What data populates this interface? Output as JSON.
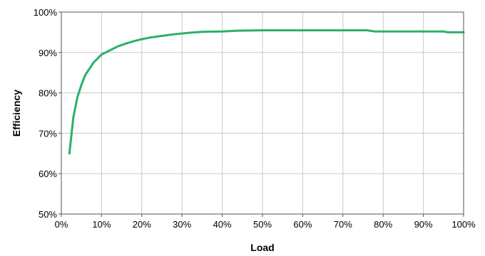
{
  "chart_data": {
    "type": "line",
    "title": "",
    "xlabel": "Load",
    "ylabel": "Efficiency",
    "xlim": [
      0,
      100
    ],
    "ylim": [
      50,
      100
    ],
    "x_ticks": [
      0,
      10,
      20,
      30,
      40,
      50,
      60,
      70,
      80,
      90,
      100
    ],
    "x_tick_labels": [
      "0%",
      "10%",
      "20%",
      "30%",
      "40%",
      "50%",
      "60%",
      "70%",
      "80%",
      "90%",
      "100%"
    ],
    "y_ticks": [
      50,
      60,
      70,
      80,
      90,
      100
    ],
    "y_tick_labels": [
      "50%",
      "60%",
      "70%",
      "80%",
      "90%",
      "100%"
    ],
    "grid": true,
    "legend": "none",
    "series": [
      {
        "color": "#2bb06b",
        "x": [
          2,
          3,
          4,
          5,
          6,
          7,
          8,
          9,
          10,
          12,
          14,
          16,
          18,
          20,
          22,
          25,
          28,
          30,
          32,
          35,
          40,
          44,
          50,
          60,
          70,
          76,
          78,
          80,
          90,
          95,
          96,
          100
        ],
        "y": [
          65,
          74,
          79,
          82,
          84.5,
          86,
          87.5,
          88.5,
          89.5,
          90.5,
          91.5,
          92.2,
          92.8,
          93.3,
          93.7,
          94.1,
          94.5,
          94.7,
          94.9,
          95.1,
          95.2,
          95.4,
          95.5,
          95.5,
          95.5,
          95.5,
          95.2,
          95.2,
          95.2,
          95.2,
          95,
          95
        ]
      }
    ]
  }
}
